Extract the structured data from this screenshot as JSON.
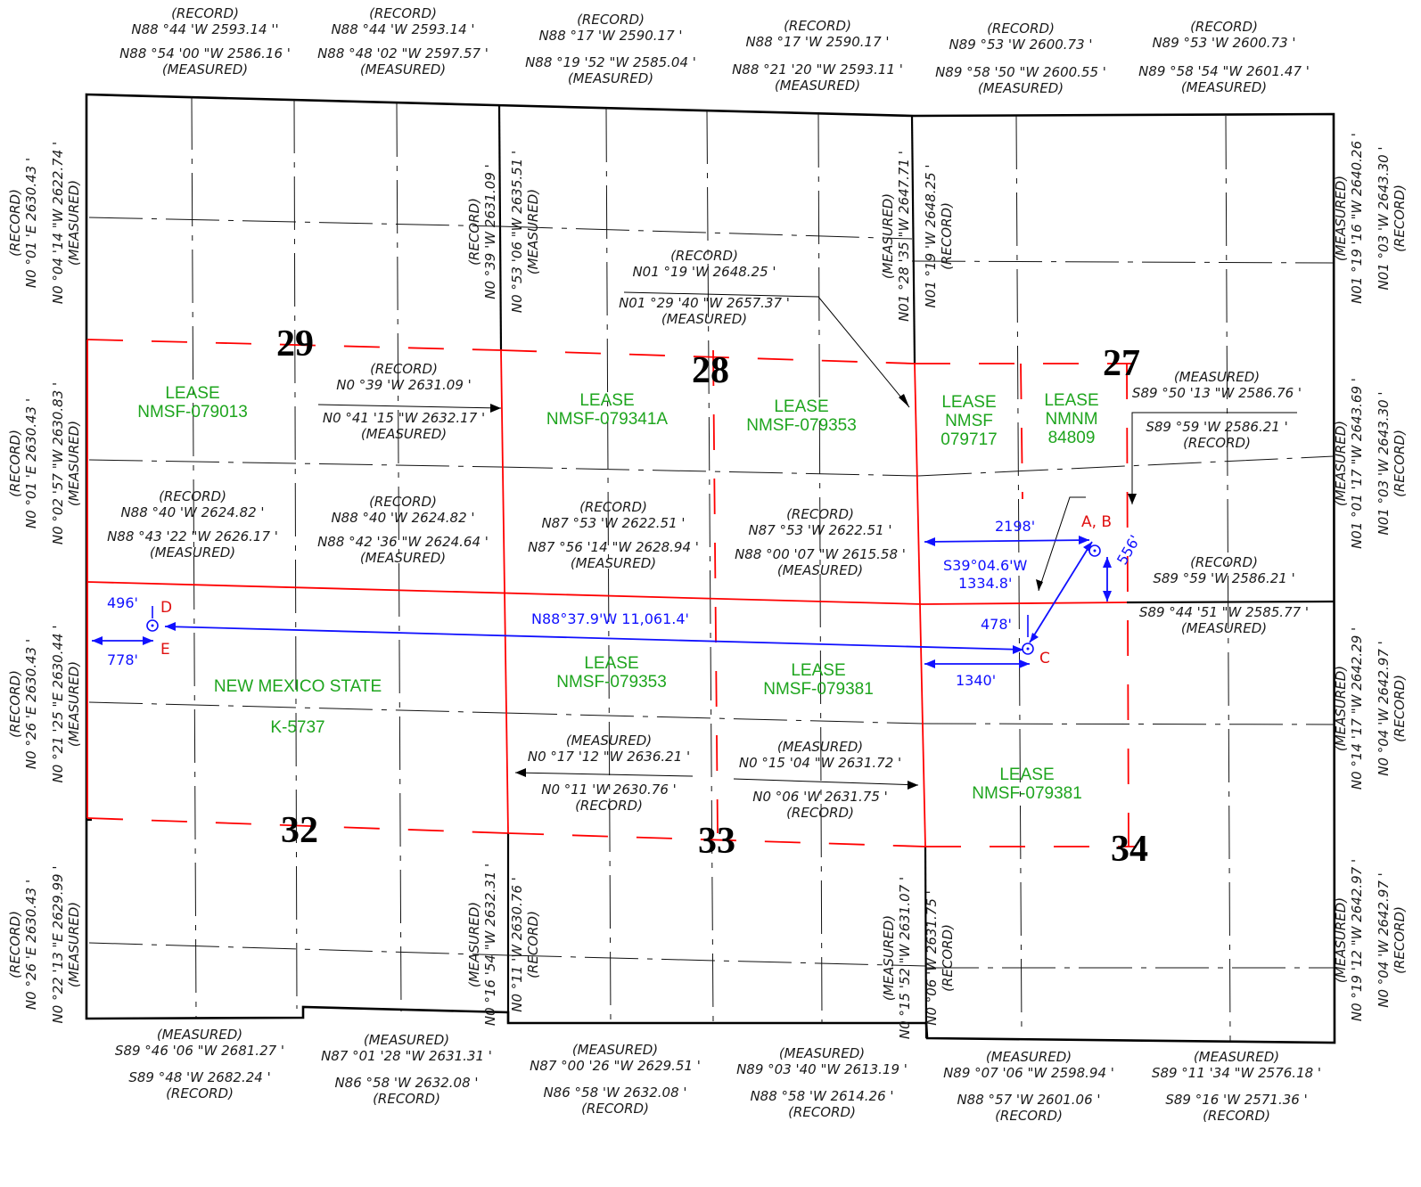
{
  "colors": {
    "boundary": "#000000",
    "red_line": "#ff0000",
    "lease_text": "#1ea51e",
    "survey_blue": "#1010ff",
    "point_label": "#e01010"
  },
  "sections": [
    "29",
    "28",
    "27",
    "32",
    "33",
    "34"
  ],
  "leases": [
    {
      "lines": [
        "LEASE",
        "NMSF-079013"
      ]
    },
    {
      "lines": [
        "LEASE",
        "NMSF-079341A"
      ]
    },
    {
      "lines": [
        "LEASE",
        "NMSF-079353"
      ]
    },
    {
      "lines": [
        "LEASE",
        "NMSF",
        "079717"
      ]
    },
    {
      "lines": [
        "LEASE",
        "NMNM",
        "84809"
      ]
    },
    {
      "lines": [
        "NEW MEXICO STATE"
      ]
    },
    {
      "lines": [
        "K-5737"
      ]
    },
    {
      "lines": [
        "LEASE",
        "NMSF-079353"
      ]
    },
    {
      "lines": [
        "LEASE",
        "NMSF-079381"
      ]
    },
    {
      "lines": [
        "LEASE",
        "NMSF-079381"
      ]
    }
  ],
  "top_bearings": [
    {
      "lines": [
        "(RECORD)",
        "N88 °44 'W  2593.14 ''",
        "N88 °54 '00 \"W  2586.16 '",
        "(MEASURED)"
      ]
    },
    {
      "lines": [
        "(RECORD)",
        "N88 °44 'W  2593.14 '",
        "N88 °48 '02 \"W  2597.57 '",
        "(MEASURED)"
      ]
    },
    {
      "lines": [
        "(RECORD)",
        "N88 °17 'W  2590.17 '",
        "N88 °19 '52 \"W  2585.04 '",
        "(MEASURED)"
      ]
    },
    {
      "lines": [
        "(RECORD)",
        "N88 °17 'W  2590.17 '",
        "N88 °21 '20 \"W  2593.11 '",
        "(MEASURED)"
      ]
    },
    {
      "lines": [
        "(RECORD)",
        "N89 °53 'W  2600.73 '",
        "N89 °58 '50 \"W  2600.55 '",
        "(MEASURED)"
      ]
    },
    {
      "lines": [
        "(RECORD)",
        "N89 °53 'W  2600.73 '",
        "N89 °58 '54 \"W  2601.47 '",
        "(MEASURED)"
      ]
    }
  ],
  "mid_bearings": [
    {
      "lines": [
        "(RECORD)",
        "N88 °40 'W  2624.82 '",
        "N88 °43 '22 \"W  2626.17 '",
        "(MEASURED)"
      ]
    },
    {
      "lines": [
        "(RECORD)",
        "N88 °40 'W  2624.82 '",
        "N88 °42 '36 \"W  2624.64 '",
        "(MEASURED)"
      ]
    },
    {
      "lines": [
        "(RECORD)",
        "N87 °53 'W  2622.51 '",
        "N87 °56 '14 \"W  2628.94 '",
        "(MEASURED)"
      ]
    },
    {
      "lines": [
        "(RECORD)",
        "N87 °53 'W  2622.51 '",
        "N88 °00 '07 \"W  2615.58 '",
        "(MEASURED)"
      ]
    }
  ],
  "bottom_bearings": [
    {
      "lines": [
        "(MEASURED)",
        "S89 °46 '06 \"W  2681.27 '",
        "S89 °48 'W  2682.24 '",
        "(RECORD)"
      ]
    },
    {
      "lines": [
        "(MEASURED)",
        "N87 °01 '28 \"W  2631.31 '",
        "N86 °58 'W  2632.08 '",
        "(RECORD)"
      ]
    },
    {
      "lines": [
        "(MEASURED)",
        "N87 °00 '26 \"W  2629.51 '",
        "N86 °58 'W  2632.08 '",
        "(RECORD)"
      ]
    },
    {
      "lines": [
        "(MEASURED)",
        "N89 °03 '40 \"W  2613.19 '",
        "N88 °58 'W  2614.26 '",
        "(RECORD)"
      ]
    },
    {
      "lines": [
        "(MEASURED)",
        "N89 °07 '06 \"W  2598.94 '",
        "N88 °57 'W  2601.06 '",
        "(RECORD)"
      ]
    },
    {
      "lines": [
        "(MEASURED)",
        "S89 °11 '34 \"W  2576.18 '",
        "S89 °16 'W  2571.36 '",
        "(RECORD)"
      ]
    }
  ],
  "vertical_bearings": [
    {
      "lines": [
        "(RECORD)",
        "N0 °01 'E  2630.43 '",
        "N0 °04 '14 \"W  2622.74 '",
        "(MEASURED)"
      ]
    },
    {
      "lines": [
        "(RECORD)",
        "N0 °01 'E  2630.43 '",
        "N0 °02 '57 \"W  2630.83 '",
        "(MEASURED)"
      ]
    },
    {
      "lines": [
        "(RECORD)",
        "N0 °26 'E  2630.43 '",
        "N0 °21 '25 \"E  2630.44 '",
        "(MEASURED)"
      ]
    },
    {
      "lines": [
        "(RECORD)",
        "N0 °26 'E  2630.43 '",
        "N0 °22 '13 \"E  2629.99 '",
        "(MEASURED)"
      ]
    },
    {
      "lines": [
        "(RECORD)",
        "N0 °39 'W  2631.09 '",
        "N0 °53 '06 \"W  2635.51 '",
        "(MEASURED)"
      ]
    },
    {
      "lines": [
        "(MEASURED)",
        "N0 °16 '54 \"W  2632.31 '",
        "N0 °11 'W  2630.76 '",
        "(RECORD)"
      ]
    },
    {
      "lines": [
        "(MEASURED)",
        "N01 °28 '35 \"W  2647.71 '",
        "N01 °19 'W  2648.25 '",
        "(RECORD)"
      ]
    },
    {
      "lines": [
        "(MEASURED)",
        "N0 °15 '52 \"W  2631.07 '",
        "N0 °06 'W  2631.75 '",
        "(RECORD)"
      ]
    },
    {
      "lines": [
        "(MEASURED)",
        "N01 °19 '16 \"W  2640.26 '",
        "N01 °03 'W  2643.30 '",
        "(RECORD)"
      ]
    },
    {
      "lines": [
        "(MEASURED)",
        "N01 °01 '17 \"W  2643.69 '",
        "N01 °03 'W  2643.30 '",
        "(RECORD)"
      ]
    },
    {
      "lines": [
        "(MEASURED)",
        "N0 °14 '17 \"W  2642.29 '",
        "N0 °04 'W  2642.97 '",
        "(RECORD)"
      ]
    },
    {
      "lines": [
        "(MEASURED)",
        "N0 °19 '12 \"W  2642.97 '",
        "N0 °04 'W  2642.97 '",
        "(RECORD)"
      ]
    }
  ],
  "callouts": [
    {
      "lines": [
        "(RECORD)",
        "N01 °19 'W  2648.25 '",
        "N01 °29 '40 \"W  2657.37 '",
        "(MEASURED)"
      ]
    },
    {
      "lines": [
        "(RECORD)",
        "N0 °39 'W  2631.09 '",
        "N0 °41 '15 \"W  2632.17 '",
        "(MEASURED)"
      ]
    },
    {
      "lines": [
        "(MEASURED)",
        "S89 °50 '13 \"W  2586.76 '",
        "S89 °59 'W  2586.21 '",
        "(RECORD)"
      ]
    },
    {
      "lines": [
        "(RECORD)",
        "S89 °59 'W  2586.21 '",
        "S89 °44 '51 \"W  2585.77 '",
        "(MEASURED)"
      ]
    },
    {
      "lines": [
        "(MEASURED)",
        "N0 °17 '12 \"W  2636.21 '",
        "N0 °11 'W  2630.76 '",
        "(RECORD)"
      ]
    },
    {
      "lines": [
        "(MEASURED)",
        "N0 °15 '04 \"W  2631.72 '",
        "N0 °06 'W  2631.75 '",
        "(RECORD)"
      ]
    }
  ],
  "survey": {
    "ties": [
      "2198'",
      "556'",
      "478'",
      "1340'",
      "496'",
      "778'"
    ],
    "course_cd": "N88°37.9'W 11,061.4'",
    "course_ac": [
      "S39°04.6'W",
      "1334.8'"
    ],
    "points": [
      "A, B",
      "C",
      "D",
      "E"
    ]
  }
}
